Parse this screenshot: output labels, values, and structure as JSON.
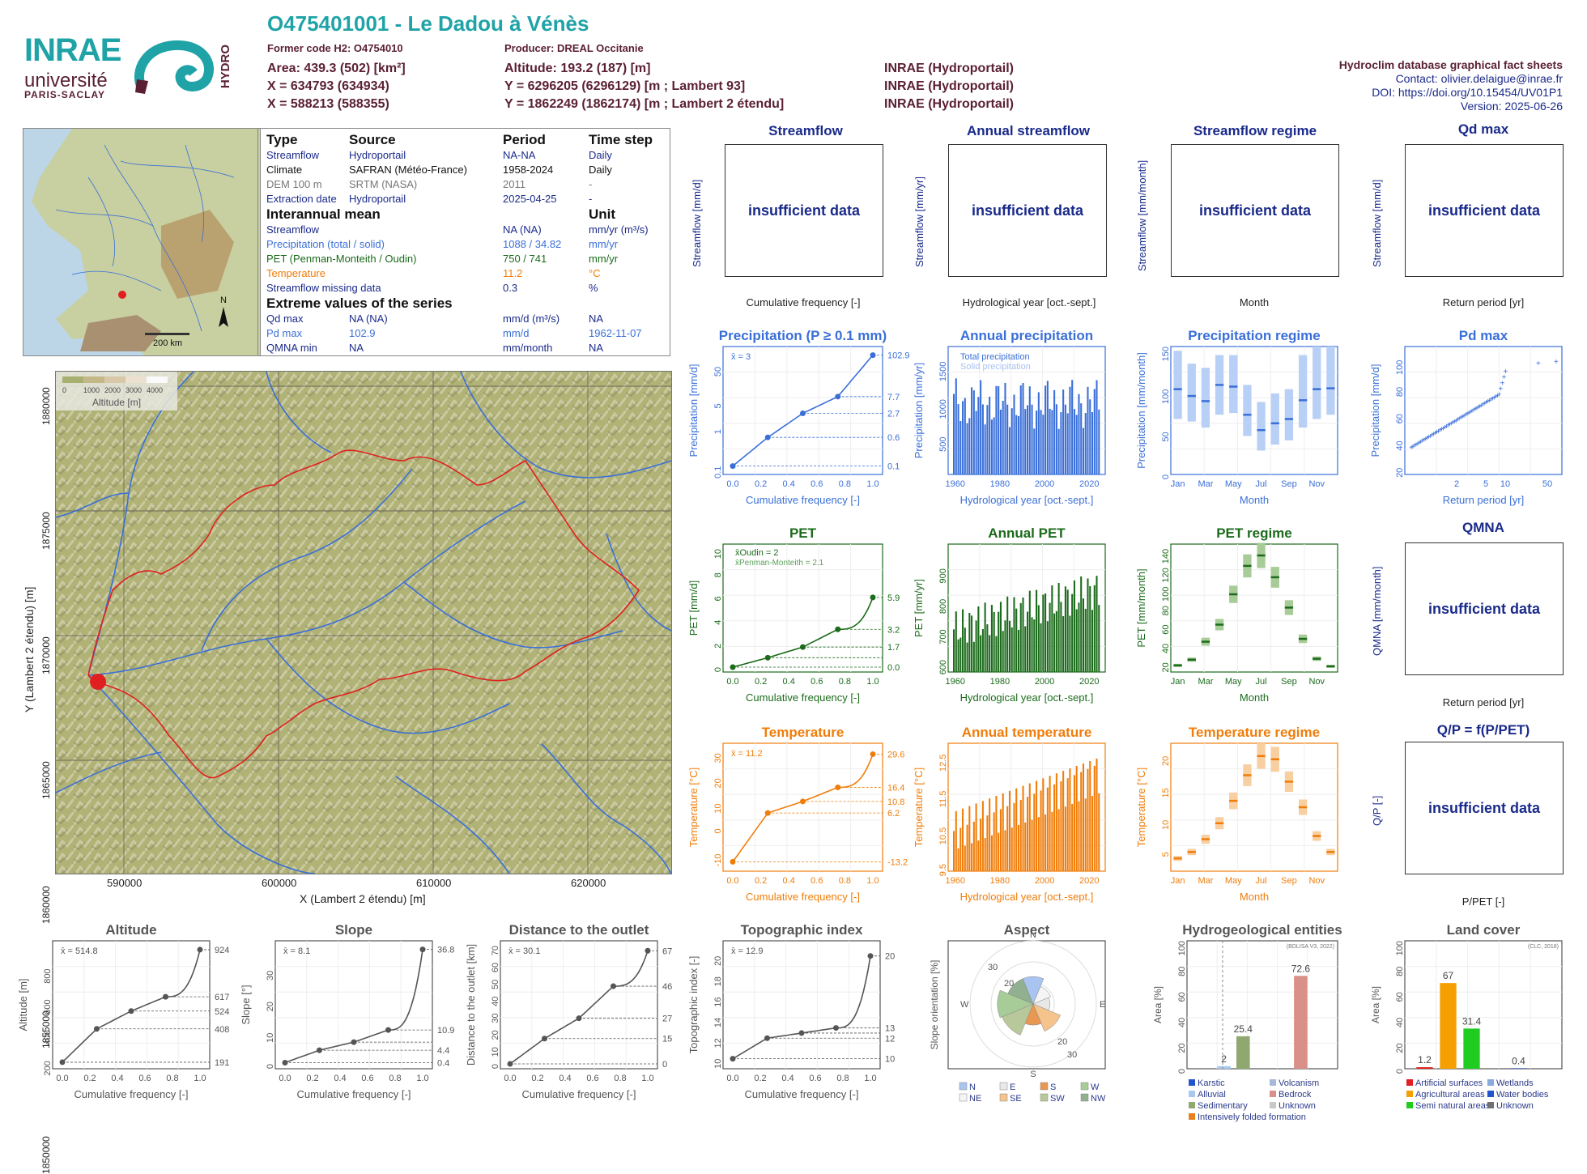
{
  "header": {
    "title": "O475401001 - Le Dadou à Vénès",
    "former_code": "Former code H2: O4754010",
    "producer": "Producer: DREAL Occitanie",
    "area": "Area: 439.3 (502) [km²]",
    "x93": "X = 634793 (634934)",
    "x2e": "X = 588213 (588355)",
    "altitude": "Altitude: 193.2 (187) [m]",
    "y93": "Y = 6296205 (6296129) [m ; Lambert 93]",
    "y2e": "Y = 1862249 (1862174) [m ; Lambert 2 étendu]",
    "src1": "INRAE (Hydroportail)",
    "src2": "INRAE (Hydroportail)",
    "src3": "INRAE (Hydroportail)",
    "db": "Hydroclim database graphical fact sheets",
    "contact": "Contact: olivier.delaigue@inrae.fr",
    "doi": "DOI: https://doi.org/10.15454/UV01P1",
    "version": "Version: 2025-06-26"
  },
  "logos": {
    "inrae": "INRAE",
    "univ": "université",
    "ps": "PARIS-SACLAY",
    "hydro": "HYDRO"
  },
  "minimap": {
    "scale": "200 km",
    "north": "N"
  },
  "info": {
    "h_type": "Type",
    "h_source": "Source",
    "h_period": "Period",
    "h_step": "Time step",
    "rows": [
      {
        "type": "Streamflow",
        "source": "Hydroportail",
        "period": "NA-NA",
        "step": "Daily",
        "color": "#1a2a8a"
      },
      {
        "type": "Climate",
        "source": "SAFRAN (Météo-France)",
        "period": "1958-2024",
        "step": "Daily",
        "color": "#111111"
      },
      {
        "type": "DEM 100 m",
        "source": "SRTM (NASA)",
        "period": "2011",
        "step": "-",
        "color": "#777777"
      },
      {
        "type": "Extraction date",
        "source": "Hydroportail",
        "period": "2025-04-25",
        "step": "-",
        "color": "#1a2a8a"
      }
    ],
    "h_mean": "Interannual mean",
    "h_unit": "Unit",
    "means": [
      {
        "name": "Streamflow",
        "value": "NA (NA)",
        "unit": "mm/yr (m³/s)",
        "color": "#1a2a8a"
      },
      {
        "name": "Precipitation (total / solid)",
        "value": "1088 / 34.82",
        "unit": "mm/yr",
        "color": "#3a6fd8"
      },
      {
        "name": "PET (Penman-Monteith / Oudin)",
        "value": "750 / 741",
        "unit": "mm/yr",
        "color": "#1b6b1b"
      },
      {
        "name": "Temperature",
        "value": "11.2",
        "unit": "°C",
        "color": "#f07d0a"
      },
      {
        "name": "Streamflow missing data",
        "value": "0.3",
        "unit": "%",
        "color": "#1a2a8a"
      }
    ],
    "h_extreme": "Extreme values of the series",
    "extremes": [
      {
        "name": "Qd max",
        "value": "NA (NA)",
        "unit": "mm/d (m³/s)",
        "date": "NA",
        "color": "#1a2a8a"
      },
      {
        "name": "Pd max",
        "value": "102.9",
        "unit": "mm/d",
        "date": "1962-11-07",
        "color": "#3a6fd8"
      },
      {
        "name": "QMNA min",
        "value": "NA",
        "unit": "mm/month",
        "date": "NA",
        "color": "#1a2a8a"
      }
    ]
  },
  "bigmap": {
    "legend_ticks": [
      "0",
      "1000",
      "2000",
      "3000",
      "4000"
    ],
    "legend_label": "Altitude [m]",
    "xticks": [
      "590000",
      "600000",
      "610000",
      "620000"
    ],
    "yticks": [
      "1880000",
      "1875000",
      "1870000",
      "1865000",
      "1860000",
      "1855000",
      "1850000"
    ],
    "xlabel": "X (Lambert 2 étendu) [m]",
    "ylabel": "Y (Lambert 2 étendu) [m]"
  },
  "insufficient": "insufficient data",
  "panels": {
    "streamflow": {
      "title": "Streamflow",
      "ylabel": "Streamflow [mm/d]",
      "xlabel": "Cumulative frequency [-]"
    },
    "annual_streamflow": {
      "title": "Annual streamflow",
      "ylabel": "Streamflow [mm/yr]",
      "xlabel": "Hydrological year [oct.-sept.]"
    },
    "streamflow_regime": {
      "title": "Streamflow regime",
      "ylabel": "Streamflow [mm/month]",
      "xlabel": "Month"
    },
    "qd_max": {
      "title": "Qd  max",
      "ylabel": "Streamflow [mm/d]",
      "xlabel": "Return period [yr]"
    },
    "qmna": {
      "title": "QMNA",
      "ylabel": "QMNA [mm/month]",
      "xlabel": "Return period [yr]"
    },
    "qp": {
      "title": "Q/P = f(P/PET)",
      "ylabel": "Q/P [-]",
      "xlabel": "P/PET [-]"
    },
    "precip": {
      "title": "Precipitation (P ≥ 0.1 mm)",
      "ylabel": "Precipitation [mm/d]",
      "xlabel": "Cumulative frequency [-]",
      "mean": "x̄ = 3"
    },
    "annual_precip": {
      "title": "Annual precipitation",
      "ylabel": "Precipitation [mm/yr]",
      "xlabel": "Hydrological year [oct.-sept.]",
      "leg1": "Total precipitation",
      "leg2": "Solid precipitation"
    },
    "precip_regime": {
      "title": "Precipitation regime",
      "ylabel": "Precipitation [mm/month]",
      "xlabel": "Month"
    },
    "pd_max": {
      "title": "Pd  max",
      "ylabel": "Precipitation [mm/d]",
      "xlabel": "Return period [yr]"
    },
    "pet": {
      "title": "PET",
      "ylabel": "PET [mm/d]",
      "xlabel": "Cumulative frequency [-]",
      "leg1": "x̄Oudin = 2",
      "leg2": "x̄Penman-Monteith = 2.1"
    },
    "annual_pet": {
      "title": "Annual PET",
      "ylabel": "PET [mm/yr]",
      "xlabel": "Hydrological year [oct.-sept.]"
    },
    "pet_regime": {
      "title": "PET regime",
      "ylabel": "PET [mm/month]",
      "xlabel": "Month"
    },
    "temp": {
      "title": "Temperature",
      "ylabel": "Temperature [°C]",
      "xlabel": "Cumulative frequency [-]",
      "mean": "x̄ = 11.2"
    },
    "annual_temp": {
      "title": "Annual temperature",
      "ylabel": "Temperature [°C]",
      "xlabel": "Hydrological year [oct.-sept.]"
    },
    "temp_regime": {
      "title": "Temperature regime",
      "ylabel": "Temperature [°C]",
      "xlabel": "Month"
    },
    "altitude": {
      "title": "Altitude",
      "ylabel": "Altitude [m]",
      "xlabel": "Cumulative frequency [-]",
      "mean": "x̄ = 514.8"
    },
    "slope": {
      "title": "Slope",
      "ylabel": "Slope [°]",
      "xlabel": "Cumulative frequency [-]",
      "mean": "x̄ = 8.1"
    },
    "distance": {
      "title": "Distance to the outlet",
      "ylabel": "Distance to the outlet [km]",
      "xlabel": "Cumulative frequency [-]",
      "mean": "x̄ = 30.1"
    },
    "topo": {
      "title": "Topographic index",
      "ylabel": "Topographic index [-]",
      "xlabel": "Cumulative frequency [-]",
      "mean": "x̄ = 12.9"
    },
    "aspect": {
      "title": "Aspect",
      "ylabel": "Slope orientation [%]"
    },
    "hydrogeo": {
      "title": "Hydrogeological entities",
      "ylabel": "Area [%]",
      "source": "(BDLISA V3, 2022)"
    },
    "landcover": {
      "title": "Land cover",
      "ylabel": "Area [%]",
      "source": "(CLC, 2018)"
    }
  },
  "chart_data": [
    {
      "id": "precip_cdf",
      "type": "line",
      "x": [
        0,
        0.25,
        0.5,
        0.75,
        1.0
      ],
      "y": [
        0.1,
        0.6,
        2.7,
        7.7,
        102.9
      ],
      "ylog": true,
      "right_labels": [
        "102.9",
        "7.7",
        "2.7",
        "0.6",
        "0.1"
      ],
      "xticks": [
        "0.0",
        "0.2",
        "0.4",
        "0.6",
        "0.8",
        "1.0"
      ],
      "yticks": [
        "0.1",
        "1",
        "5",
        "50"
      ]
    },
    {
      "id": "annual_precip",
      "type": "bar",
      "x_range": [
        1959,
        2024
      ],
      "xticks": [
        "1960",
        "1980",
        "2000",
        "2020"
      ],
      "yticks": [
        "500",
        "1000",
        "1500"
      ],
      "ylim": [
        0,
        1700
      ]
    },
    {
      "id": "precip_regime",
      "type": "bar",
      "categories": [
        "Jan",
        "Feb",
        "Mar",
        "Apr",
        "May",
        "Jun",
        "Jul",
        "Aug",
        "Sep",
        "Oct",
        "Nov",
        "Dec"
      ],
      "median": [
        100,
        92,
        86,
        105,
        103,
        70,
        52,
        60,
        65,
        87,
        100,
        101
      ],
      "q_low": [
        65,
        62,
        55,
        70,
        72,
        45,
        28,
        35,
        40,
        55,
        65,
        70
      ],
      "q_high": [
        145,
        130,
        125,
        140,
        140,
        105,
        85,
        95,
        100,
        140,
        150,
        150
      ],
      "ylim": [
        0,
        150
      ],
      "xticks": [
        "Jan",
        "Mar",
        "May",
        "Jul",
        "Sep",
        "Nov"
      ],
      "yticks": [
        "0",
        "50",
        "100",
        "150"
      ]
    },
    {
      "id": "pd_max",
      "type": "scatter",
      "xticks": [
        "2",
        "5",
        "10",
        "50"
      ],
      "yticks": [
        "20",
        "40",
        "60",
        "80",
        "100"
      ],
      "ylim": [
        15,
        110
      ]
    },
    {
      "id": "pet_cdf",
      "type": "line",
      "x": [
        0,
        0.25,
        0.5,
        0.75,
        1.0
      ],
      "y": [
        0.0,
        0.8,
        1.7,
        3.2,
        5.9
      ],
      "right_labels": [
        "5.9",
        "3.2",
        "1.7",
        "0.0"
      ],
      "xticks": [
        "0.0",
        "0.2",
        "0.4",
        "0.6",
        "0.8",
        "1.0"
      ],
      "yticks": [
        "0",
        "2",
        "4",
        "6",
        "8",
        "10"
      ],
      "ylim": [
        0,
        10
      ]
    },
    {
      "id": "annual_pet",
      "type": "bar",
      "x_range": [
        1959,
        2024
      ],
      "xticks": [
        "1960",
        "1980",
        "2000",
        "2020"
      ],
      "yticks": [
        "600",
        "700",
        "800",
        "900"
      ],
      "ylim": [
        560,
        980
      ]
    },
    {
      "id": "pet_regime",
      "type": "bar",
      "categories": [
        "Jan",
        "Feb",
        "Mar",
        "Apr",
        "May",
        "Jun",
        "Jul",
        "Aug",
        "Sep",
        "Oct",
        "Nov",
        "Dec"
      ],
      "median": [
        17,
        23,
        42,
        60,
        92,
        122,
        133,
        110,
        78,
        45,
        24,
        16
      ],
      "ylim": [
        10,
        145
      ],
      "xticks": [
        "Jan",
        "Mar",
        "May",
        "Jul",
        "Sep",
        "Nov"
      ],
      "yticks": [
        "20",
        "40",
        "60",
        "80",
        "100",
        "120",
        "140"
      ]
    },
    {
      "id": "temp_cdf",
      "type": "line",
      "x": [
        0,
        0.25,
        0.5,
        0.75,
        1.0
      ],
      "y": [
        -13.2,
        6.2,
        10.8,
        16.4,
        29.6
      ],
      "right_labels": [
        "29.6",
        "16.4",
        "10.8",
        "6.2",
        "-13.2"
      ],
      "xticks": [
        "0.0",
        "0.2",
        "0.4",
        "0.6",
        "0.8",
        "1.0"
      ],
      "yticks": [
        "-10",
        "0",
        "10",
        "20",
        "30"
      ],
      "ylim": [
        -15,
        32
      ]
    },
    {
      "id": "annual_temp",
      "type": "bar",
      "x_range": [
        1959,
        2024
      ],
      "xticks": [
        "1960",
        "1980",
        "2000",
        "2020"
      ],
      "yticks": [
        "9.5",
        "10.5",
        "11.5",
        "12.5"
      ],
      "ylim": [
        9.3,
        12.8
      ]
    },
    {
      "id": "temp_regime",
      "type": "bar",
      "categories": [
        "Jan",
        "Feb",
        "Mar",
        "Apr",
        "May",
        "Jun",
        "Jul",
        "Aug",
        "Sep",
        "Oct",
        "Nov",
        "Dec"
      ],
      "median": [
        4,
        5,
        7,
        9.5,
        13,
        17,
        20,
        19.5,
        16,
        12,
        7.5,
        5
      ],
      "ylim": [
        2,
        22
      ],
      "xticks": [
        "Jan",
        "Mar",
        "May",
        "Jul",
        "Sep",
        "Nov"
      ],
      "yticks": [
        "5",
        "10",
        "15",
        "20"
      ]
    },
    {
      "id": "altitude_cdf",
      "type": "line",
      "x": [
        0,
        0.25,
        0.5,
        0.75,
        1.0
      ],
      "y": [
        191,
        408,
        524,
        617,
        924
      ],
      "right_labels": [
        "924",
        "617",
        "524",
        "408",
        "191"
      ],
      "ylim": [
        180,
        950
      ],
      "xticks": [
        "0.0",
        "0.2",
        "0.4",
        "0.6",
        "0.8",
        "1.0"
      ],
      "yticks": [
        "200",
        "400",
        "600",
        "800"
      ]
    },
    {
      "id": "slope_cdf",
      "type": "line",
      "x": [
        0,
        0.25,
        0.5,
        0.75,
        1.0
      ],
      "y": [
        0.4,
        4.4,
        7.0,
        10.9,
        36.8
      ],
      "right_labels": [
        "36.8",
        "10.9",
        "4.4",
        "0.4"
      ],
      "ylim": [
        0,
        38
      ],
      "xticks": [
        "0.0",
        "0.2",
        "0.4",
        "0.6",
        "0.8",
        "1.0"
      ],
      "yticks": [
        "0",
        "10",
        "20",
        "30"
      ]
    },
    {
      "id": "distance_cdf",
      "type": "line",
      "x": [
        0,
        0.25,
        0.5,
        0.75,
        1.0
      ],
      "y": [
        0,
        15,
        27,
        46,
        67
      ],
      "right_labels": [
        "67",
        "46",
        "27",
        "15",
        "0"
      ],
      "ylim": [
        0,
        70
      ],
      "xticks": [
        "0.0",
        "0.2",
        "0.4",
        "0.6",
        "0.8",
        "1.0"
      ],
      "yticks": [
        "0",
        "10",
        "20",
        "30",
        "40",
        "50",
        "60",
        "70"
      ]
    },
    {
      "id": "topo_cdf",
      "type": "line",
      "x": [
        0,
        0.25,
        0.5,
        0.75,
        1.0
      ],
      "y": [
        10,
        12,
        12.5,
        13,
        20
      ],
      "right_labels": [
        "20",
        "13",
        "12",
        "10"
      ],
      "ylim": [
        9.5,
        21
      ],
      "xticks": [
        "0.0",
        "0.2",
        "0.4",
        "0.6",
        "0.8",
        "1.0"
      ],
      "yticks": [
        "10",
        "12",
        "14",
        "16",
        "18",
        "20"
      ]
    },
    {
      "id": "aspect",
      "type": "pie",
      "categories": [
        "N",
        "NE",
        "E",
        "SE",
        "S",
        "SW",
        "W",
        "NW"
      ],
      "values": [
        13,
        9,
        8,
        14,
        10,
        16,
        17,
        13
      ],
      "colors": [
        "#a9c4f0",
        "#f5f5f5",
        "#e8e8e8",
        "#f5c38c",
        "#e89850",
        "#b8c89a",
        "#a8cc98",
        "#90b090"
      ],
      "rings": [
        "10",
        "20",
        "30"
      ]
    },
    {
      "id": "hydrogeo",
      "type": "bar",
      "categories": [
        "Karstic",
        "Alluvial",
        "Sedimentary",
        "Intensively folded formation",
        "Volcanism",
        "Bedrock",
        "Unknown"
      ],
      "values": [
        0,
        2,
        25.4,
        0,
        0,
        72.6,
        0
      ],
      "colors": [
        "#2255cc",
        "#a8c8f0",
        "#8fa870",
        "#e88020",
        "#a8b8d8",
        "#d89088",
        "#c8c8c8"
      ],
      "ylim": [
        0,
        100
      ],
      "yticks": [
        "0",
        "20",
        "40",
        "60",
        "80",
        "100"
      ]
    },
    {
      "id": "landcover",
      "type": "bar",
      "categories": [
        "Artificial surfaces",
        "Agricultural areas",
        "Semi natural areas",
        "Wetlands",
        "Water bodies",
        "Unknown"
      ],
      "values": [
        1.2,
        67,
        31.4,
        0,
        0.4,
        0
      ],
      "colors": [
        "#e02020",
        "#f5a000",
        "#20cc20",
        "#88aadd",
        "#2255cc",
        "#707070"
      ],
      "ylim": [
        0,
        100
      ],
      "yticks": [
        "0",
        "20",
        "40",
        "60",
        "80",
        "100"
      ]
    }
  ]
}
